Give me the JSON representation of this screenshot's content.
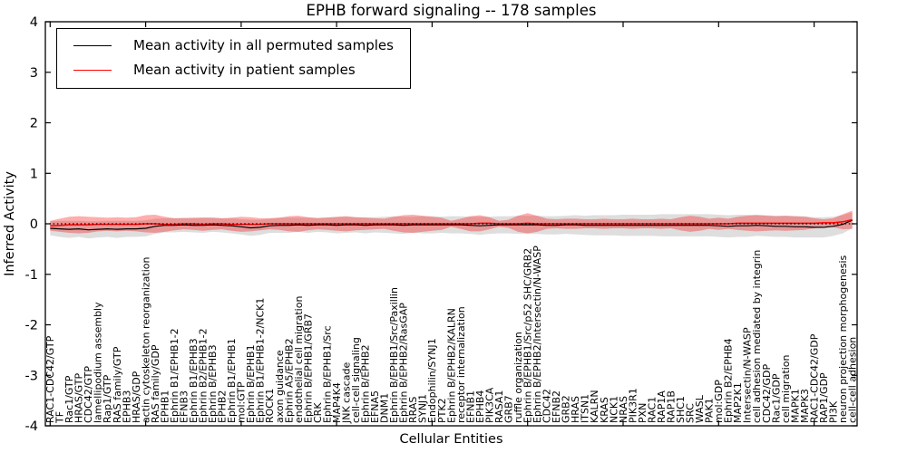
{
  "chart_data": {
    "type": "line",
    "title": "EPHB forward signaling -- 178 samples",
    "xlabel": "Cellular Entities",
    "ylabel": "Inferred Activity",
    "ylim": [
      -4,
      4
    ],
    "yticks": [
      -4,
      -3,
      -2,
      -1,
      0,
      1,
      2,
      3,
      4
    ],
    "grid": false,
    "legend_position": "upper left",
    "zero_line": {
      "y": 0,
      "style": "dotted",
      "color": "#000000"
    },
    "categories": [
      "RAC1-CDC42/GTP",
      "TF",
      "Rac1/GTP",
      "HRAS/GTP",
      "CDC42/GTP",
      "lamellipodium assembly",
      "Rap1/GTP",
      "RAS family/GTP",
      "EPHB3",
      "HRAS/GDP",
      "actin cytoskeleton reorganization",
      "RAS family/GDP",
      "EPHB1",
      "Ephrin B1/EPHB1-2",
      "EFNB3",
      "Ephrin B1/EPHB3",
      "Ephrin B2/EPHB1-2",
      "Ephrin B/EPHB3",
      "EPHB2",
      "Ephrin B1/EPHB1",
      "mol:GTP",
      "Ephrin B/EPHB1",
      "Ephrin B1/EPHB1-2/NCK1",
      "ROCK1",
      "axon guidance",
      "Ephrin A5/EPHB2",
      "endothelial cell migration",
      "Ephrin B/EPHB1/GRB7",
      "CRK",
      "Ephrin B/EPHB1/Src",
      "MAP4K4",
      "JNK cascade",
      "cell-cell signaling",
      "Ephrin B/EPHB2",
      "EFNA5",
      "DNM1",
      "Ephrin B/EPHB1/Src/Paxillin",
      "Ephrin B/EPHB2/RasGAP",
      "RRAS",
      "SYNJ1",
      "Endophilin/SYNJ1",
      "PTK2",
      "Ephrin B/EPHB2/KALRN",
      "receptor internalization",
      "EFNB1",
      "EPHB4",
      "PIK3CA",
      "RASA1",
      "GRB7",
      "ruffle organization",
      "Ephrin B/EPHB1/Src/p52 SHC/GRB2",
      "Ephrin B/EPHB2/Intersectin/N-WASP",
      "CDC42",
      "EFNB2",
      "GRB2",
      "HRAS",
      "ITSN1",
      "KALRN",
      "KRAS",
      "NCK1",
      "NRAS",
      "PIK3R1",
      "PXN",
      "RAC1",
      "RAP1A",
      "RAP1B",
      "SHC1",
      "SRC",
      "WASL",
      "PAK1",
      "mol:GDP",
      "Ephrin B2/EPHB4",
      "MAP2K1",
      "Intersectin/N-WASP",
      "cell adhesion mediated by integrin",
      "CDC42/GDP",
      "Rac1/GDP",
      "cell migration",
      "MAPK1",
      "MAPK3",
      "RAC1-CDC42/GDP",
      "RAP1/GDP",
      "PI3K",
      "neuron projection morphogenesis",
      "cell-cell adhesion"
    ],
    "series": [
      {
        "name": "Mean activity in all permuted samples",
        "color": "#000000",
        "band_color": "#000000",
        "band_opacity": 0.13,
        "values": [
          -0.09,
          -0.1,
          -0.11,
          -0.1,
          -0.12,
          -0.11,
          -0.1,
          -0.11,
          -0.1,
          -0.1,
          -0.09,
          -0.05,
          -0.03,
          -0.03,
          -0.02,
          -0.03,
          -0.03,
          -0.02,
          -0.03,
          -0.04,
          -0.06,
          -0.08,
          -0.07,
          -0.04,
          -0.03,
          -0.03,
          -0.02,
          -0.03,
          -0.02,
          -0.02,
          -0.03,
          -0.02,
          -0.02,
          -0.03,
          -0.02,
          -0.02,
          -0.02,
          -0.03,
          -0.02,
          -0.02,
          -0.02,
          -0.02,
          -0.02,
          -0.02,
          -0.03,
          -0.04,
          -0.03,
          -0.02,
          -0.02,
          -0.02,
          -0.02,
          -0.02,
          -0.03,
          -0.03,
          -0.02,
          -0.02,
          -0.03,
          -0.03,
          -0.03,
          -0.03,
          -0.03,
          -0.03,
          -0.03,
          -0.03,
          -0.03,
          -0.03,
          -0.03,
          -0.03,
          -0.03,
          -0.03,
          -0.04,
          -0.05,
          -0.04,
          -0.04,
          -0.03,
          -0.04,
          -0.05,
          -0.05,
          -0.06,
          -0.06,
          -0.07,
          -0.07,
          -0.05,
          -0.01,
          0.07
        ],
        "band_halfwidth": [
          0.14,
          0.16,
          0.17,
          0.16,
          0.17,
          0.16,
          0.16,
          0.17,
          0.16,
          0.16,
          0.16,
          0.15,
          0.14,
          0.14,
          0.14,
          0.14,
          0.15,
          0.14,
          0.14,
          0.15,
          0.15,
          0.16,
          0.15,
          0.14,
          0.15,
          0.15,
          0.14,
          0.15,
          0.14,
          0.15,
          0.16,
          0.16,
          0.15,
          0.16,
          0.15,
          0.16,
          0.17,
          0.17,
          0.16,
          0.17,
          0.17,
          0.16,
          0.17,
          0.17,
          0.17,
          0.18,
          0.17,
          0.17,
          0.17,
          0.18,
          0.18,
          0.18,
          0.18,
          0.18,
          0.18,
          0.19,
          0.19,
          0.2,
          0.2,
          0.2,
          0.21,
          0.21,
          0.21,
          0.21,
          0.22,
          0.22,
          0.22,
          0.22,
          0.22,
          0.22,
          0.22,
          0.22,
          0.22,
          0.22,
          0.21,
          0.21,
          0.21,
          0.21,
          0.21,
          0.21,
          0.2,
          0.2,
          0.19,
          0.18,
          0.16
        ]
      },
      {
        "name": "Mean activity in patient samples",
        "color": "#ff0000",
        "band_color": "#ff0000",
        "band_opacity": 0.32,
        "values": [
          -0.04,
          -0.03,
          -0.02,
          -0.02,
          -0.02,
          -0.01,
          -0.01,
          -0.01,
          -0.01,
          -0.01,
          0,
          0,
          -0.01,
          -0.01,
          0,
          0,
          -0.01,
          0,
          0,
          -0.01,
          -0.01,
          -0.01,
          -0.01,
          0,
          0,
          0,
          0,
          0,
          0,
          0,
          0,
          0,
          0,
          0,
          0,
          0,
          0,
          0,
          0,
          0,
          0,
          0,
          0,
          0,
          0,
          0.01,
          0.01,
          0,
          0,
          0,
          0.01,
          0,
          0,
          0,
          0,
          0,
          0,
          0,
          0,
          0,
          0,
          0,
          0,
          0,
          0,
          0,
          0,
          0,
          0,
          0,
          0,
          0,
          0.01,
          0.01,
          0.01,
          0.01,
          0.01,
          0.01,
          0.01,
          0.01,
          0.01,
          0.02,
          0.02,
          0.04,
          0.08
        ],
        "band_halfwidth": [
          0.1,
          0.13,
          0.16,
          0.17,
          0.16,
          0.14,
          0.13,
          0.14,
          0.13,
          0.14,
          0.17,
          0.18,
          0.15,
          0.12,
          0.11,
          0.12,
          0.13,
          0.12,
          0.11,
          0.13,
          0.15,
          0.14,
          0.12,
          0.11,
          0.12,
          0.15,
          0.16,
          0.13,
          0.11,
          0.12,
          0.14,
          0.15,
          0.13,
          0.12,
          0.11,
          0.1,
          0.14,
          0.17,
          0.18,
          0.16,
          0.14,
          0.12,
          0.06,
          0.1,
          0.15,
          0.16,
          0.12,
          0.06,
          0.08,
          0.16,
          0.2,
          0.16,
          0.1,
          0.09,
          0.1,
          0.1,
          0.09,
          0.09,
          0.1,
          0.09,
          0.09,
          0.1,
          0.09,
          0.09,
          0.1,
          0.09,
          0.13,
          0.16,
          0.14,
          0.1,
          0.12,
          0.1,
          0.13,
          0.15,
          0.16,
          0.15,
          0.14,
          0.15,
          0.14,
          0.13,
          0.1,
          0.07,
          0.09,
          0.15,
          0.18
        ]
      }
    ]
  }
}
